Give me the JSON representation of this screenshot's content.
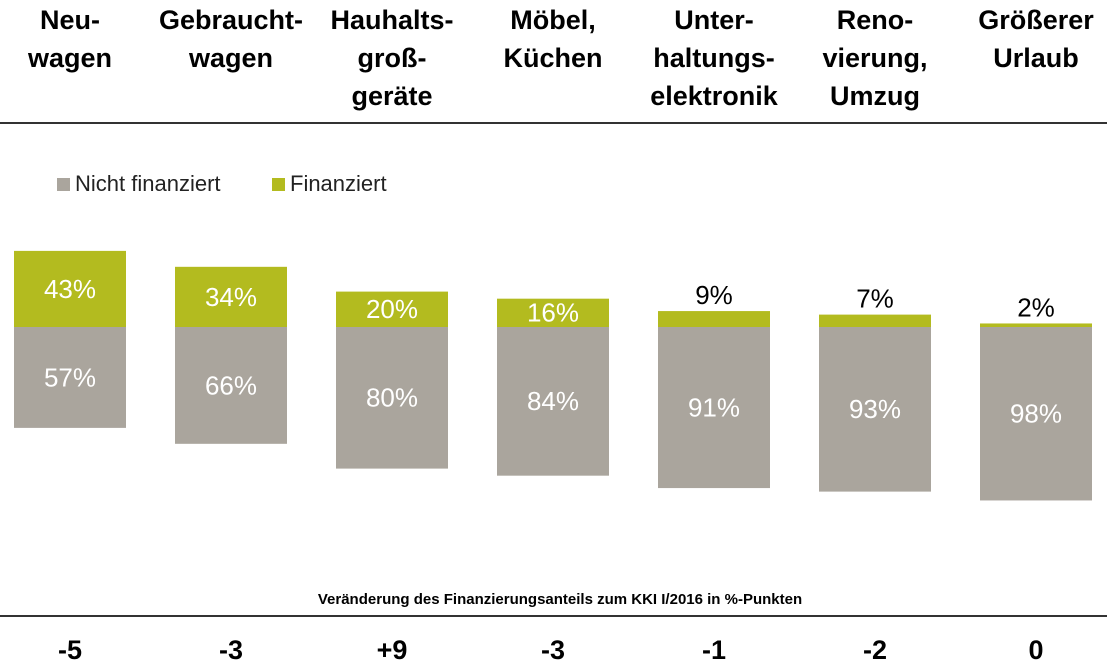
{
  "chart_data": {
    "type": "bar",
    "stacked": true,
    "categories": [
      "Neu-\nwagen",
      "Gebraucht-\nwagen",
      "Hauhalts-\ngroß-\ngeräte",
      "Möbel,\nKüchen",
      "Unter-\nhaltungs-\nelektronik",
      "Reno-\nvierung,\nUmzug",
      "Größerer\nUrlaub"
    ],
    "series": [
      {
        "name": "Nicht finanziert",
        "color": "#aaa59d",
        "values": [
          57,
          66,
          80,
          84,
          91,
          93,
          98
        ],
        "value_labels": [
          "57%",
          "66%",
          "80%",
          "84%",
          "91%",
          "93%",
          "98%"
        ]
      },
      {
        "name": "Finanziert",
        "color": "#b3bb1f",
        "values": [
          43,
          34,
          20,
          16,
          9,
          7,
          2
        ],
        "value_labels": [
          "43%",
          "34%",
          "20%",
          "16%",
          "9%",
          "7%",
          "2%"
        ]
      }
    ],
    "note": "Veränderung des Finanzierungsanteils zum KKI I/2016 in %-Punkten",
    "changes": [
      "-5",
      "-3",
      "+9",
      "-3",
      "-1",
      "-2",
      "0"
    ]
  }
}
